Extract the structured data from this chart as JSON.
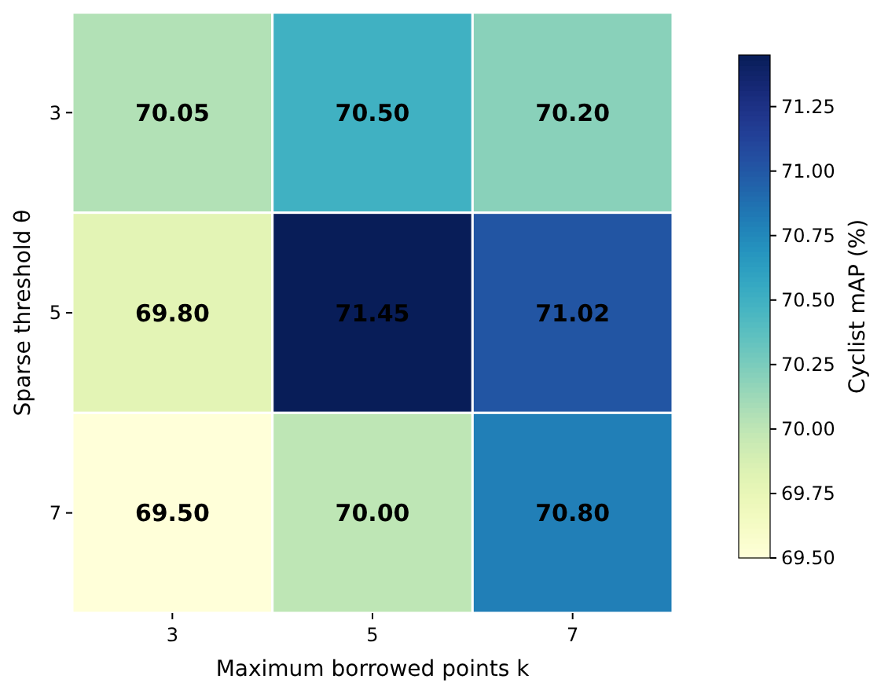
{
  "chart_data": {
    "type": "heatmap",
    "xlabel": "Maximum borrowed points k",
    "ylabel": "Sparse threshold θ",
    "clabel": "Cyclist mAP (%)",
    "categories": [
      "3",
      "5",
      "7"
    ],
    "y_categories": [
      "3",
      "5",
      "7"
    ],
    "cells": [
      [
        70.05,
        70.5,
        70.2
      ],
      [
        69.8,
        71.45,
        71.02
      ],
      [
        69.5,
        70.0,
        70.8
      ]
    ],
    "cell_labels": [
      [
        "70.05",
        "70.50",
        "70.20"
      ],
      [
        "69.80",
        "71.45",
        "71.02"
      ],
      [
        "69.50",
        "70.00",
        "70.80"
      ]
    ],
    "clim": [
      69.5,
      71.45
    ],
    "cticks": [
      {
        "value": 69.5,
        "label": "69.50"
      },
      {
        "value": 69.75,
        "label": "69.75"
      },
      {
        "value": 70.0,
        "label": "70.00"
      },
      {
        "value": 70.25,
        "label": "70.25"
      },
      {
        "value": 70.5,
        "label": "70.50"
      },
      {
        "value": 70.75,
        "label": "70.75"
      },
      {
        "value": 71.0,
        "label": "71.00"
      },
      {
        "value": 71.25,
        "label": "71.25"
      }
    ]
  }
}
